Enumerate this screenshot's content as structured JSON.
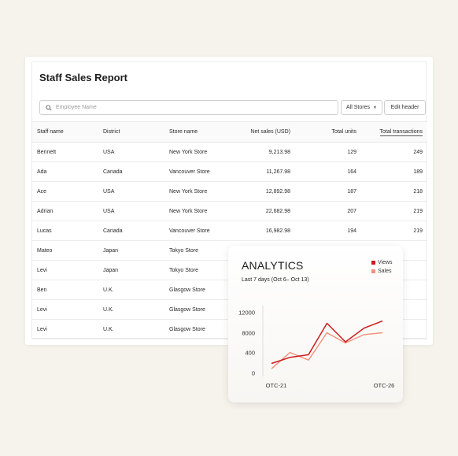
{
  "report": {
    "title": "Staff Sales Report",
    "search_placeholder": "Employee Name",
    "stores_filter": "All Stores",
    "edit_header_label": "Edit header",
    "columns": [
      "Staff name",
      "District",
      "Store name",
      "Net sales (USD)",
      "Total units",
      "Total transactions"
    ],
    "rows": [
      [
        "Bennett",
        "USA",
        "New York Store",
        "9,213.98",
        "129",
        "249"
      ],
      [
        "Ada",
        "Canada",
        "Vancouver Store",
        "11,267.98",
        "164",
        "189"
      ],
      [
        "Ace",
        "USA",
        "New York Store",
        "12,892.98",
        "187",
        "218"
      ],
      [
        "Adrian",
        "USA",
        "New York Store",
        "22,682.98",
        "207",
        "219"
      ],
      [
        "Lucas",
        "Canada",
        "Vancouver Store",
        "16,982.98",
        "194",
        "219"
      ],
      [
        "Mateo",
        "Japan",
        "Tokyo Store",
        "",
        "",
        ""
      ],
      [
        "Levi",
        "Japan",
        "Tokyo Store",
        "",
        "",
        ""
      ],
      [
        "Ben",
        "U.K.",
        "Glasgow Store",
        "",
        "",
        ""
      ],
      [
        "Levi",
        "U.K.",
        "Glasgow Store",
        "",
        "",
        ""
      ],
      [
        "Levi",
        "U.K.",
        "Glasgow Store",
        "",
        "",
        ""
      ]
    ]
  },
  "analytics": {
    "title": "ANALYTICS",
    "subtitle": "Last 7 days (Oct 6– Oct 13)"
  },
  "chart_data": {
    "type": "line",
    "title": "ANALYTICS",
    "subtitle": "Last 7 days (Oct 6– Oct 13)",
    "x_tick_labels": [
      "OTC-21",
      "OTC-26"
    ],
    "y_ticks": [
      0,
      400,
      8000,
      12000
    ],
    "y_tick_labels": [
      "0",
      "400",
      "8000",
      "12000"
    ],
    "legend_position": "top-right",
    "series": [
      {
        "name": "Views",
        "color": "#cc1b1b",
        "values": [
          1.3,
          2.1,
          2.45,
          6.6,
          4.15,
          5.95,
          6.9
        ]
      },
      {
        "name": "Sales",
        "color": "#f2917b",
        "values": [
          0.6,
          2.75,
          1.75,
          5.35,
          4.0,
          5.1,
          5.35
        ]
      }
    ],
    "grid": false
  }
}
